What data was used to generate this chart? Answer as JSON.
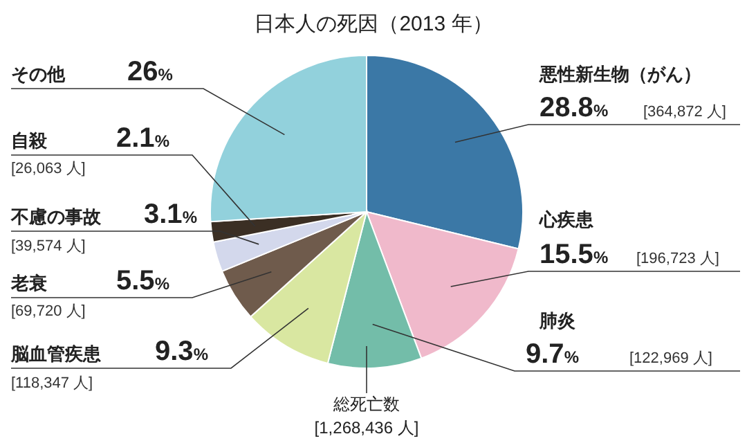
{
  "chart_data": {
    "type": "pie",
    "title": "日本人の死因（2013 年）",
    "categories": [
      "悪性新生物（がん）",
      "心疾患",
      "肺炎",
      "脳血管疾患",
      "老衰",
      "不慮の事故",
      "自殺",
      "その他"
    ],
    "values": [
      28.8,
      15.5,
      9.7,
      9.3,
      5.5,
      3.1,
      2.1,
      26
    ],
    "value_labels": [
      "28.8%",
      "15.5%",
      "9.7%",
      "9.3%",
      "5.5%",
      "3.1%",
      "2.1%",
      "26%"
    ],
    "colors": [
      "#3b78a6",
      "#f0b9cb",
      "#73bda9",
      "#d9e7a1",
      "#6f5b4c",
      "#d3d8ec",
      "#3b2f24",
      "#92d1dc"
    ],
    "annotations": [
      "[364,872 人]",
      "[196,723 人]",
      "[122,969 人]",
      "[118,347 人]",
      "[69,720 人]",
      "[39,574 人]",
      "[26,063 人]",
      "総死亡数",
      "[1,268,436 人]"
    ]
  }
}
